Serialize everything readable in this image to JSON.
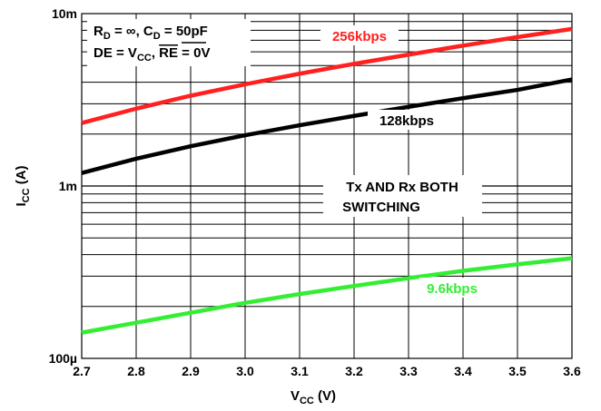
{
  "chart_data": {
    "type": "line",
    "xlabel": {
      "main": "V",
      "sub": "CC",
      "unit": " (V)"
    },
    "ylabel": {
      "main": "I",
      "sub": "CC",
      "unit": " (A)"
    },
    "xlim": [
      2.7,
      3.6
    ],
    "ylim": [
      0.0001,
      0.01
    ],
    "yscale": "log",
    "grid": true,
    "x_ticks": [
      2.7,
      2.8,
      2.9,
      3.0,
      3.1,
      3.2,
      3.3,
      3.4,
      3.5,
      3.6
    ],
    "x_tick_labels": [
      "2.7",
      "2.8",
      "2.9",
      "3.0",
      "3.1",
      "3.2",
      "3.3",
      "3.4",
      "3.5",
      "3.6"
    ],
    "y_ticks": [
      0.0001,
      0.001,
      0.01
    ],
    "y_tick_labels": [
      "100µ",
      "1m",
      "10m"
    ],
    "series": [
      {
        "name": "256kbps",
        "color": "#ff2020",
        "x": [
          2.7,
          2.8,
          2.9,
          3.0,
          3.1,
          3.2,
          3.3,
          3.4,
          3.5,
          3.6
        ],
        "y": [
          0.00232,
          0.00281,
          0.00334,
          0.00389,
          0.00448,
          0.00511,
          0.00578,
          0.00652,
          0.00731,
          0.00815
        ]
      },
      {
        "name": "128kbps",
        "color": "#000000",
        "x": [
          2.7,
          2.8,
          2.9,
          3.0,
          3.1,
          3.2,
          3.3,
          3.4,
          3.5,
          3.6
        ],
        "y": [
          0.00119,
          0.00144,
          0.0017,
          0.00197,
          0.00225,
          0.00255,
          0.00288,
          0.00323,
          0.00361,
          0.00415
        ]
      },
      {
        "name": "9.6kbps",
        "color": "#33ee33",
        "x": [
          2.7,
          2.8,
          2.9,
          3.0,
          3.1,
          3.2,
          3.3,
          3.4,
          3.5,
          3.6
        ],
        "y": [
          0.000141,
          0.000161,
          0.000184,
          0.00021,
          0.000236,
          0.000263,
          0.000292,
          0.000322,
          0.000351,
          0.000381
        ]
      }
    ],
    "annotations": {
      "conditions": {
        "line1": {
          "a": "R",
          "a_sub": "D",
          "b": " = ∞, C",
          "b_sub": "D",
          "c": " = 50pF"
        },
        "line2": {
          "a": "DE = V",
          "a_sub": "CC",
          "b": ", ",
          "overline": "RE",
          "c": " = 0V"
        }
      },
      "note": [
        "Tx AND Rx BOTH",
        "SWITCHING"
      ]
    }
  }
}
